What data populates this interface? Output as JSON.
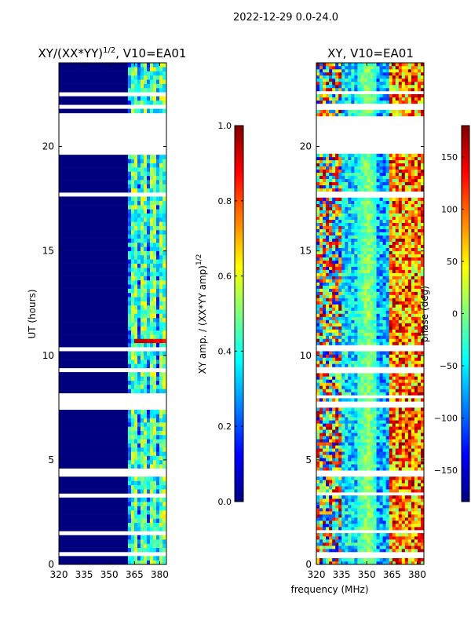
{
  "figure_title": "2022-12-29 0.0-24.0",
  "shared_xlabel": "frequency (MHz)",
  "colors": {
    "jet": [
      "#00007f",
      "#0000ff",
      "#007fff",
      "#00ffff",
      "#7fff7f",
      "#ffff00",
      "#ff7f00",
      "#ff0000",
      "#7f0000"
    ],
    "background": "#ffffff",
    "axis": "#000000"
  },
  "chart_data": [
    {
      "type": "heatmap",
      "title": "XY/(XX*YY)",
      "title_exponent": "1/2",
      "title_suffix": ", V10=EA01",
      "xlabel": "",
      "ylabel": "UT (hours)",
      "xlim": [
        320,
        384
      ],
      "ylim": [
        0,
        24
      ],
      "xticks": [
        320,
        335,
        350,
        365,
        380
      ],
      "yticks": [
        0,
        5,
        10,
        15,
        20
      ],
      "data_gaps_hours": [
        [
          0.4,
          0.6
        ],
        [
          1.5,
          1.6
        ],
        [
          3.3,
          3.4
        ],
        [
          4.2,
          4.45
        ],
        [
          7.5,
          7.7
        ],
        [
          7.95,
          8.1
        ],
        [
          9.2,
          9.35
        ],
        [
          10.3,
          10.4
        ],
        [
          17.6,
          17.75
        ],
        [
          19.65,
          21.45
        ],
        [
          21.85,
          22.0
        ],
        [
          22.5,
          22.6
        ]
      ],
      "description_bands": [
        {
          "freq_range": [
            320,
            362
          ],
          "level": 0.0
        },
        {
          "freq_range": [
            362,
            384
          ],
          "level": 0.35
        }
      ],
      "colorbar": {
        "range": [
          0.0,
          1.0
        ],
        "ticks": [
          "0.0",
          "0.2",
          "0.4",
          "0.6",
          "0.8",
          "1.0"
        ],
        "label": "XY amp. / (XX*YY amp)",
        "label_exponent": "1/2"
      }
    },
    {
      "type": "heatmap",
      "title": "XY, V10=EA01",
      "xlabel": "frequency (MHz)",
      "ylabel": "",
      "xlim": [
        320,
        384
      ],
      "ylim": [
        0,
        24
      ],
      "xticks": [
        320,
        335,
        350,
        365,
        380
      ],
      "yticks": [
        0,
        5,
        10,
        15,
        20
      ],
      "data_gaps_hours": [
        [
          0.4,
          0.6
        ],
        [
          1.5,
          1.6
        ],
        [
          3.3,
          3.4
        ],
        [
          4.2,
          4.45
        ],
        [
          7.5,
          7.7
        ],
        [
          7.95,
          8.1
        ],
        [
          9.2,
          9.35
        ],
        [
          10.3,
          10.4
        ],
        [
          17.6,
          17.75
        ],
        [
          19.65,
          21.45
        ],
        [
          21.85,
          22.0
        ],
        [
          22.5,
          22.6
        ]
      ],
      "colorbar": {
        "range": [
          -180,
          180
        ],
        "ticks": [
          "150",
          "100",
          "50",
          "0",
          "−50",
          "−100",
          "−150"
        ],
        "tick_values": [
          150,
          100,
          50,
          0,
          -50,
          -100,
          -150
        ],
        "label": "phase (deg)"
      }
    }
  ]
}
